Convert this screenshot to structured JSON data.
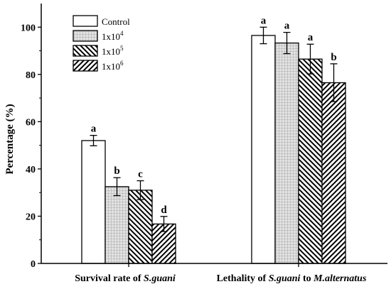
{
  "chart_data": {
    "type": "bar",
    "ylabel": "Percentage (%)",
    "ylim": [
      0,
      110
    ],
    "yticks": [
      0,
      20,
      40,
      60,
      80,
      100
    ],
    "legend_position": "top-left",
    "groups": [
      {
        "label_prefix": "Survival rate of ",
        "label_italic": "S.guani",
        "label_suffix": ""
      },
      {
        "label_prefix": "Lethality of  ",
        "label_italic": "S.guani",
        "label_mid": " to ",
        "label_italic2": "M.alternatus"
      }
    ],
    "series": [
      {
        "name": "Control",
        "legend_base": "Control",
        "legend_exp": "",
        "pattern": "white",
        "values": [
          52,
          96.5
        ],
        "errors": [
          2.2,
          3.5
        ],
        "letters": [
          "a",
          "a"
        ]
      },
      {
        "name": "1x10^4",
        "legend_base": "1x10",
        "legend_exp": "4",
        "pattern": "grid",
        "values": [
          32.5,
          93.3
        ],
        "errors": [
          3.8,
          4.5
        ],
        "letters": [
          "b",
          "a"
        ]
      },
      {
        "name": "1x10^5",
        "legend_base": "1x10",
        "legend_exp": "5",
        "pattern": "back-diag",
        "values": [
          31,
          86.5
        ],
        "errors": [
          4,
          6.3
        ],
        "letters": [
          "c",
          "a"
        ]
      },
      {
        "name": "1x10^6",
        "legend_base": "1x10",
        "legend_exp": "6",
        "pattern": "fwd-diag",
        "values": [
          16.7,
          76.5
        ],
        "errors": [
          3.2,
          8
        ],
        "letters": [
          "d",
          "b"
        ]
      }
    ]
  }
}
